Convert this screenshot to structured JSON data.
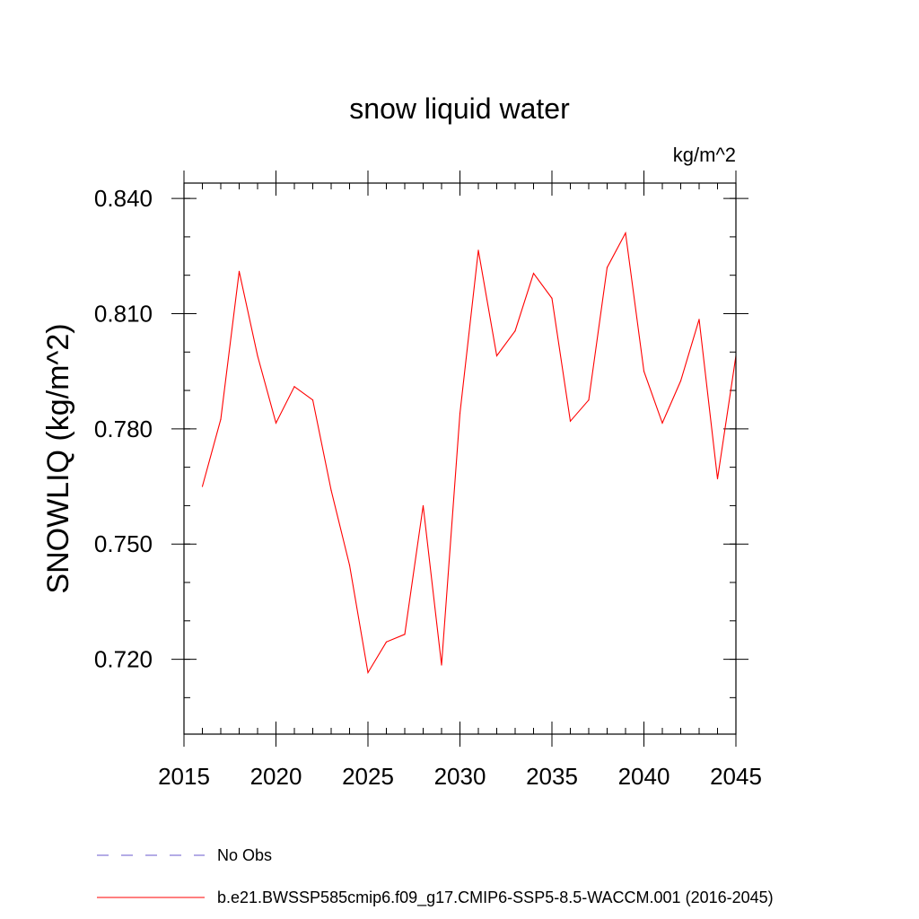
{
  "chart_data": {
    "type": "line",
    "title": "snow liquid water",
    "units_label": "kg/m^2",
    "ylabel": "SNOWLIQ  (kg/m^2)",
    "xlabel": "",
    "xlim": [
      2015,
      2045
    ],
    "ylim": [
      0.7005,
      0.844
    ],
    "x_ticks": [
      "2015",
      "2020",
      "2025",
      "2030",
      "2035",
      "2040",
      "2045"
    ],
    "x_tick_values": [
      2015,
      2020,
      2025,
      2030,
      2035,
      2040,
      2045
    ],
    "y_ticks": [
      "0.720",
      "0.750",
      "0.780",
      "0.810",
      "0.840"
    ],
    "y_tick_values": [
      0.72,
      0.75,
      0.78,
      0.81,
      0.84
    ],
    "y_minor_step": 0.01,
    "x_minor_step": 1,
    "grid": false,
    "legend_position": "bottom-left",
    "series": [
      {
        "name": "b.e21.BWSSP585cmip6.f09_g17.CMIP6-SSP5-8.5-WACCM.001 (2016-2045)",
        "color": "#ff0000",
        "style": "solid",
        "x": [
          2016,
          2017,
          2018,
          2019,
          2020,
          2021,
          2022,
          2023,
          2024,
          2025,
          2026,
          2027,
          2028,
          2029,
          2030,
          2031,
          2032,
          2033,
          2034,
          2035,
          2036,
          2037,
          2038,
          2039,
          2040,
          2041,
          2042,
          2043,
          2044,
          2045
        ],
        "values": [
          0.765,
          0.7825,
          0.821,
          0.799,
          0.7815,
          0.791,
          0.7875,
          0.764,
          0.7445,
          0.7165,
          0.7245,
          0.7265,
          0.76,
          0.7185,
          0.784,
          0.8265,
          0.799,
          0.8055,
          0.8205,
          0.814,
          0.782,
          0.7875,
          0.822,
          0.831,
          0.795,
          0.7815,
          0.7925,
          0.8085,
          0.767,
          0.799
        ]
      }
    ],
    "legend": [
      {
        "label": "No Obs",
        "color": "#6a5acd",
        "style": "dashed"
      },
      {
        "label": "b.e21.BWSSP585cmip6.f09_g17.CMIP6-SSP5-8.5-WACCM.001 (2016-2045)",
        "color": "#ff0000",
        "style": "solid"
      }
    ]
  }
}
